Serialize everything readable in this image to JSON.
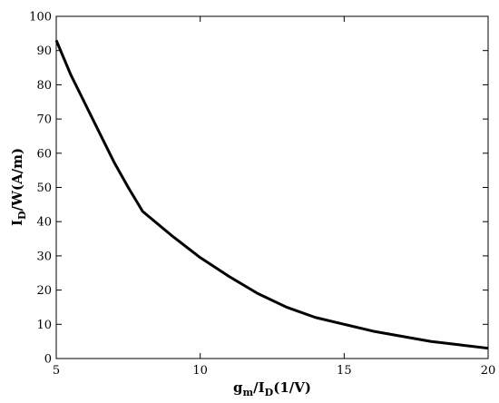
{
  "chart_data": {
    "type": "line",
    "xlabel": [
      "g",
      "m",
      "/I",
      "D",
      "(1/V)"
    ],
    "ylabel": [
      "I",
      "D",
      "/W(A/m)"
    ],
    "x": [
      5,
      5.5,
      6,
      6.5,
      7,
      7.5,
      8,
      9,
      10,
      11,
      12,
      13,
      14,
      15,
      16,
      17,
      18,
      19,
      20
    ],
    "series": [
      {
        "color": "#000000",
        "values": [
          93,
          83,
          74.5,
          66,
          57.5,
          50,
          43,
          36,
          29.5,
          24,
          19,
          15,
          12,
          10,
          8,
          6.5,
          5,
          4,
          3
        ]
      }
    ],
    "xlim": [
      5,
      20
    ],
    "xticks": [
      5,
      10,
      15,
      20
    ],
    "ylim": [
      0,
      100
    ],
    "yticks": [
      0,
      10,
      20,
      30,
      40,
      50,
      60,
      70,
      80,
      90,
      100
    ]
  }
}
